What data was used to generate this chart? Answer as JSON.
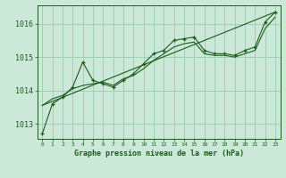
{
  "title": "Graphe pression niveau de la mer (hPa)",
  "background_color": "#cce8d8",
  "grid_color": "#99ccb0",
  "line_color": "#1a5c1a",
  "marker_color": "#1a5c1a",
  "xlim": [
    -0.5,
    23.5
  ],
  "ylim": [
    1012.55,
    1016.55
  ],
  "yticks": [
    1013,
    1014,
    1015,
    1016
  ],
  "xtick_labels": [
    "0",
    "1",
    "2",
    "3",
    "4",
    "5",
    "6",
    "7",
    "8",
    "9",
    "10",
    "11",
    "12",
    "13",
    "14",
    "15",
    "16",
    "17",
    "18",
    "19",
    "20",
    "21",
    "22",
    "23"
  ],
  "series1_x": [
    0,
    1,
    2,
    3,
    4,
    5,
    6,
    7,
    8,
    9,
    10,
    11,
    12,
    13,
    14,
    15,
    16,
    17,
    18,
    19,
    20,
    21,
    22,
    23
  ],
  "series1_y": [
    1012.7,
    1013.6,
    1013.8,
    1014.1,
    1014.85,
    1014.3,
    1014.2,
    1014.1,
    1014.3,
    1014.5,
    1014.8,
    1015.1,
    1015.2,
    1015.5,
    1015.55,
    1015.6,
    1015.2,
    1015.1,
    1015.1,
    1015.05,
    1015.2,
    1015.3,
    1016.05,
    1016.35
  ],
  "series2_x": [
    0,
    1,
    2,
    3,
    4,
    5,
    6,
    7,
    8,
    9,
    10,
    11,
    12,
    13,
    14,
    15,
    16,
    17,
    18,
    19,
    20,
    21,
    22,
    23
  ],
  "series2_y": [
    1013.55,
    1013.75,
    1013.85,
    1014.05,
    1014.15,
    1014.2,
    1014.25,
    1014.15,
    1014.35,
    1014.45,
    1014.65,
    1014.9,
    1015.1,
    1015.3,
    1015.4,
    1015.45,
    1015.1,
    1015.05,
    1015.05,
    1015.0,
    1015.1,
    1015.2,
    1015.85,
    1016.2
  ],
  "series3_x": [
    0,
    23
  ],
  "series3_y": [
    1013.55,
    1016.35
  ],
  "figwidth": 3.2,
  "figheight": 2.0,
  "dpi": 100
}
